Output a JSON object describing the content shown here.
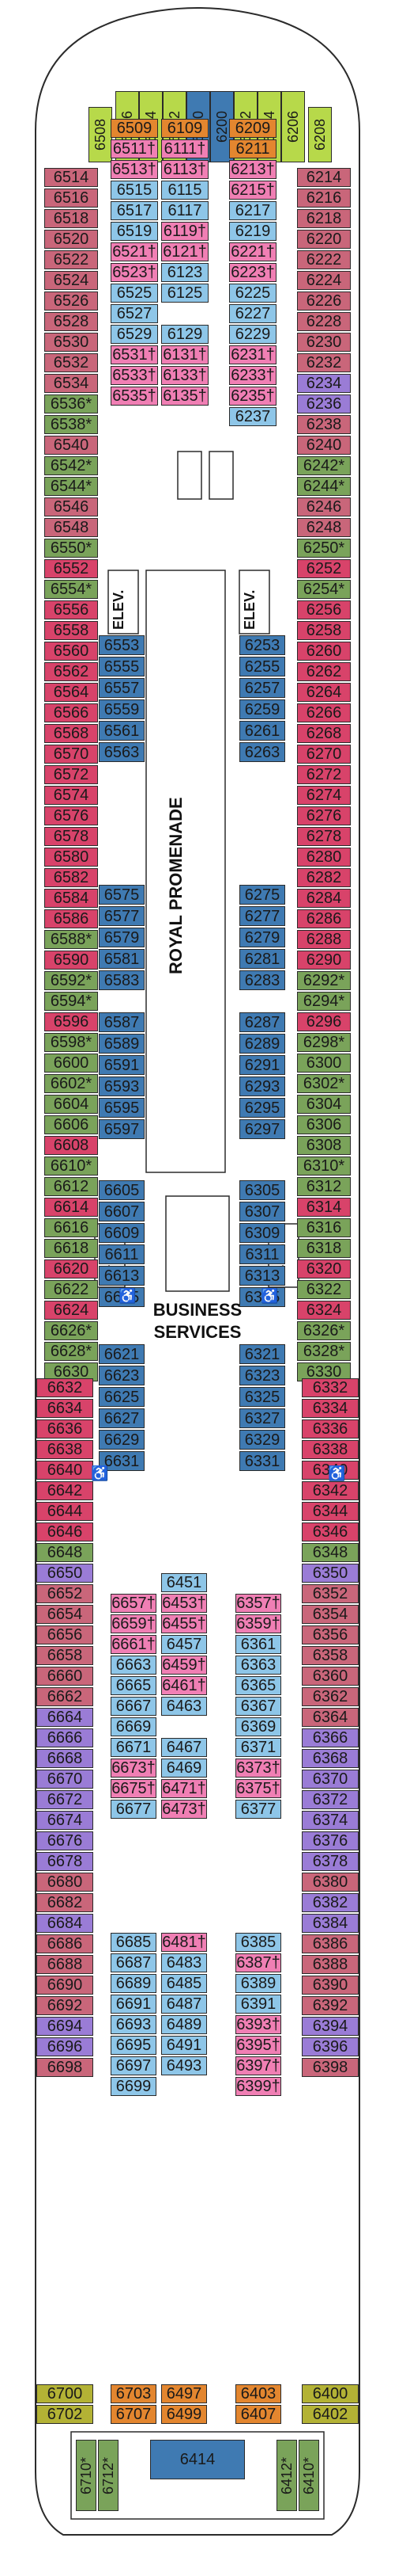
{
  "colors": {
    "red": "#d8436a",
    "rose": "#c9667a",
    "blue": "#8ec6e8",
    "steelblue": "#3f7ab2",
    "pink": "#f07fb4",
    "green": "#7aa35a",
    "olive": "#b3b235",
    "lime": "#b7d94a",
    "orange": "#e3862f",
    "purple": "#9a7cd6",
    "deck": "#ffffff",
    "line": "#2b2b2b"
  },
  "labels": {
    "royal_promenade": "ROYAL PROMENADE",
    "business_services": "BUSINESS SERVICES",
    "elevator": "ELEV."
  },
  "cabins": {
    "bow": [
      "6508",
      "6506",
      "6504",
      "6502",
      "6500",
      "6200",
      "6202",
      "6204",
      "6206",
      "6208"
    ],
    "left_outer": [
      [
        "6514",
        "rose"
      ],
      [
        "6516",
        "rose"
      ],
      [
        "6518",
        "rose"
      ],
      [
        "6520",
        "rose"
      ],
      [
        "6522",
        "rose"
      ],
      [
        "6524",
        "rose"
      ],
      [
        "6526",
        "rose"
      ],
      [
        "6528",
        "rose"
      ],
      [
        "6530",
        "rose"
      ],
      [
        "6532",
        "rose"
      ],
      [
        "6534",
        "rose"
      ],
      [
        "6536*",
        "green"
      ],
      [
        "6538*",
        "green"
      ],
      [
        "6540",
        "rose"
      ],
      [
        "6542*",
        "green"
      ],
      [
        "6544*",
        "green"
      ],
      [
        "6546",
        "rose"
      ],
      [
        "6548",
        "rose"
      ],
      [
        "6550*",
        "green"
      ],
      [
        "6552",
        "red"
      ],
      [
        "6554*",
        "green"
      ],
      [
        "6556",
        "red"
      ],
      [
        "6558",
        "red"
      ],
      [
        "6560",
        "red"
      ],
      [
        "6562",
        "red"
      ],
      [
        "6564",
        "red"
      ],
      [
        "6566",
        "red"
      ],
      [
        "6568",
        "red"
      ],
      [
        "6570",
        "red"
      ],
      [
        "6572",
        "red"
      ],
      [
        "6574",
        "red"
      ],
      [
        "6576",
        "red"
      ],
      [
        "6578",
        "red"
      ],
      [
        "6580",
        "red"
      ],
      [
        "6582",
        "red"
      ],
      [
        "6584",
        "red"
      ],
      [
        "6586",
        "red"
      ],
      [
        "6588*",
        "green"
      ],
      [
        "6590",
        "red"
      ],
      [
        "6592*",
        "green"
      ],
      [
        "6594*",
        "green"
      ],
      [
        "6596",
        "red"
      ],
      [
        "6598*",
        "green"
      ],
      [
        "6600",
        "green"
      ],
      [
        "6602*",
        "green"
      ],
      [
        "6604",
        "green"
      ],
      [
        "6606",
        "green"
      ],
      [
        "6608",
        "red"
      ],
      [
        "6610*",
        "green"
      ],
      [
        "6612",
        "green"
      ],
      [
        "6614",
        "red"
      ],
      [
        "6616",
        "green"
      ],
      [
        "6618",
        "green"
      ],
      [
        "6620",
        "red"
      ],
      [
        "6622",
        "green"
      ],
      [
        "6624",
        "red"
      ],
      [
        "6626*",
        "green"
      ],
      [
        "6628*",
        "green"
      ],
      [
        "6630",
        "green"
      ]
    ],
    "right_outer": [
      [
        "6214",
        "rose"
      ],
      [
        "6216",
        "rose"
      ],
      [
        "6218",
        "rose"
      ],
      [
        "6220",
        "rose"
      ],
      [
        "6222",
        "rose"
      ],
      [
        "6224",
        "rose"
      ],
      [
        "6226",
        "rose"
      ],
      [
        "6228",
        "rose"
      ],
      [
        "6230",
        "rose"
      ],
      [
        "6232",
        "rose"
      ],
      [
        "6234",
        "purple"
      ],
      [
        "6236",
        "purple"
      ],
      [
        "6238",
        "rose"
      ],
      [
        "6240",
        "rose"
      ],
      [
        "6242*",
        "green"
      ],
      [
        "6244*",
        "green"
      ],
      [
        "6246",
        "rose"
      ],
      [
        "6248",
        "rose"
      ],
      [
        "6250*",
        "green"
      ],
      [
        "6252",
        "red"
      ],
      [
        "6254*",
        "green"
      ],
      [
        "6256",
        "red"
      ],
      [
        "6258",
        "red"
      ],
      [
        "6260",
        "red"
      ],
      [
        "6262",
        "red"
      ],
      [
        "6264",
        "red"
      ],
      [
        "6266",
        "red"
      ],
      [
        "6268",
        "red"
      ],
      [
        "6270",
        "red"
      ],
      [
        "6272",
        "red"
      ],
      [
        "6274",
        "red"
      ],
      [
        "6276",
        "red"
      ],
      [
        "6278",
        "red"
      ],
      [
        "6280",
        "red"
      ],
      [
        "6282",
        "red"
      ],
      [
        "6284",
        "red"
      ],
      [
        "6286",
        "red"
      ],
      [
        "6288",
        "red"
      ],
      [
        "6290",
        "red"
      ],
      [
        "6292*",
        "green"
      ],
      [
        "6294*",
        "green"
      ],
      [
        "6296",
        "red"
      ],
      [
        "6298*",
        "green"
      ],
      [
        "6300",
        "green"
      ],
      [
        "6302*",
        "green"
      ],
      [
        "6304",
        "green"
      ],
      [
        "6306",
        "green"
      ],
      [
        "6308",
        "green"
      ],
      [
        "6310*",
        "green"
      ],
      [
        "6312",
        "green"
      ],
      [
        "6314",
        "red"
      ],
      [
        "6316",
        "green"
      ],
      [
        "6318",
        "green"
      ],
      [
        "6320",
        "red"
      ],
      [
        "6322",
        "green"
      ],
      [
        "6324",
        "red"
      ],
      [
        "6326*",
        "green"
      ],
      [
        "6328*",
        "green"
      ],
      [
        "6330",
        "green"
      ]
    ],
    "fwd_inner_left": [
      [
        "6509",
        "orange"
      ],
      [
        "6511†",
        "pink"
      ],
      [
        "6513†",
        "pink"
      ],
      [
        "6515",
        "blue"
      ],
      [
        "6517",
        "blue"
      ],
      [
        "6519",
        "blue"
      ],
      [
        "6521†",
        "pink"
      ],
      [
        "6523†",
        "pink"
      ],
      [
        "6525",
        "blue"
      ],
      [
        "6527",
        "blue"
      ],
      [
        "6529",
        "blue"
      ],
      [
        "6531†",
        "pink"
      ],
      [
        "6533†",
        "pink"
      ],
      [
        "6535†",
        "pink"
      ]
    ],
    "fwd_inner_c1": [
      [
        "6109",
        "orange"
      ],
      [
        "6111†",
        "pink"
      ],
      [
        "6113†",
        "pink"
      ],
      [
        "6115",
        "blue"
      ],
      [
        "6117",
        "blue"
      ],
      [
        "6119†",
        "pink"
      ],
      [
        "6121†",
        "pink"
      ],
      [
        "6123",
        "blue"
      ],
      [
        "6125",
        "blue"
      ],
      [
        "",
        "none"
      ],
      [
        "6129",
        "blue"
      ],
      [
        "6131†",
        "pink"
      ],
      [
        "6133†",
        "pink"
      ],
      [
        "6135†",
        "pink"
      ]
    ],
    "fwd_inner_right": [
      [
        "6209",
        "orange"
      ],
      [
        "6211",
        "orange"
      ],
      [
        "6213†",
        "pink"
      ],
      [
        "6215†",
        "pink"
      ],
      [
        "6217",
        "blue"
      ],
      [
        "6219",
        "blue"
      ],
      [
        "6221†",
        "pink"
      ],
      [
        "6223†",
        "pink"
      ],
      [
        "6225",
        "blue"
      ],
      [
        "6227",
        "blue"
      ],
      [
        "6229",
        "blue"
      ],
      [
        "6231†",
        "pink"
      ],
      [
        "6233†",
        "pink"
      ],
      [
        "6235†",
        "pink"
      ],
      [
        "6237",
        "blue"
      ]
    ],
    "mid_left_a": [
      "6553",
      "6555",
      "6557",
      "6559",
      "6561",
      "6563"
    ],
    "mid_right_a": [
      "6253",
      "6255",
      "6257",
      "6259",
      "6261",
      "6263"
    ],
    "mid_left_b": [
      "6575",
      "6577",
      "6579",
      "6581",
      "6583"
    ],
    "mid_right_b": [
      "6275",
      "6277",
      "6279",
      "6281",
      "6283"
    ],
    "mid_left_c": [
      "6587",
      "6589",
      "6591",
      "6593",
      "6595",
      "6597"
    ],
    "mid_right_c": [
      "6287",
      "6289",
      "6291",
      "6293",
      "6295",
      "6297"
    ],
    "mid_left_d": [
      "6605",
      "6607",
      "6609",
      "6611",
      "6613",
      "6615"
    ],
    "mid_right_d": [
      "6305",
      "6307",
      "6309",
      "6311",
      "6313",
      "6315"
    ],
    "mid_left_e": [
      "6621",
      "6623",
      "6625",
      "6627",
      "6629",
      "6631"
    ],
    "mid_right_e": [
      "6321",
      "6323",
      "6325",
      "6327",
      "6329",
      "6331"
    ],
    "aft_left_outer": [
      [
        "6632",
        "red"
      ],
      [
        "6634",
        "red"
      ],
      [
        "6636",
        "red"
      ],
      [
        "6638",
        "red"
      ],
      [
        "6640",
        "red"
      ],
      [
        "6642",
        "red"
      ],
      [
        "6644",
        "red"
      ],
      [
        "6646",
        "red"
      ],
      [
        "6648",
        "green"
      ],
      [
        "6650",
        "purple"
      ],
      [
        "6652",
        "rose"
      ],
      [
        "6654",
        "rose"
      ],
      [
        "6656",
        "rose"
      ],
      [
        "6658",
        "rose"
      ],
      [
        "6660",
        "rose"
      ],
      [
        "6662",
        "rose"
      ],
      [
        "6664",
        "purple"
      ],
      [
        "6666",
        "purple"
      ],
      [
        "6668",
        "purple"
      ],
      [
        "6670",
        "purple"
      ],
      [
        "6672",
        "purple"
      ],
      [
        "6674",
        "purple"
      ],
      [
        "6676",
        "purple"
      ],
      [
        "6678",
        "purple"
      ],
      [
        "6680",
        "rose"
      ],
      [
        "6682",
        "rose"
      ],
      [
        "6684",
        "purple"
      ],
      [
        "6686",
        "rose"
      ],
      [
        "6688",
        "rose"
      ],
      [
        "6690",
        "rose"
      ],
      [
        "6692",
        "rose"
      ],
      [
        "6694",
        "purple"
      ],
      [
        "6696",
        "purple"
      ],
      [
        "6698",
        "rose"
      ]
    ],
    "aft_right_outer": [
      [
        "6332",
        "red"
      ],
      [
        "6334",
        "red"
      ],
      [
        "6336",
        "red"
      ],
      [
        "6338",
        "red"
      ],
      [
        "6340",
        "red"
      ],
      [
        "6342",
        "red"
      ],
      [
        "6344",
        "red"
      ],
      [
        "6346",
        "red"
      ],
      [
        "6348",
        "green"
      ],
      [
        "6350",
        "purple"
      ],
      [
        "6352",
        "rose"
      ],
      [
        "6354",
        "rose"
      ],
      [
        "6356",
        "rose"
      ],
      [
        "6358",
        "rose"
      ],
      [
        "6360",
        "rose"
      ],
      [
        "6362",
        "rose"
      ],
      [
        "6364",
        "rose"
      ],
      [
        "6366",
        "purple"
      ],
      [
        "6368",
        "purple"
      ],
      [
        "6370",
        "purple"
      ],
      [
        "6372",
        "purple"
      ],
      [
        "6374",
        "purple"
      ],
      [
        "6376",
        "purple"
      ],
      [
        "6378",
        "purple"
      ],
      [
        "6380",
        "rose"
      ],
      [
        "6382",
        "purple"
      ],
      [
        "6384",
        "purple"
      ],
      [
        "6386",
        "rose"
      ],
      [
        "6388",
        "rose"
      ],
      [
        "6390",
        "rose"
      ],
      [
        "6392",
        "rose"
      ],
      [
        "6394",
        "purple"
      ],
      [
        "6396",
        "purple"
      ],
      [
        "6398",
        "rose"
      ]
    ],
    "aft_inner_l1": [
      [
        "6657†",
        "pink"
      ],
      [
        "6659†",
        "pink"
      ],
      [
        "6661†",
        "pink"
      ],
      [
        "6663",
        "blue"
      ],
      [
        "6665",
        "blue"
      ],
      [
        "6667",
        "blue"
      ],
      [
        "6669",
        "blue"
      ],
      [
        "6671",
        "blue"
      ],
      [
        "6673†",
        "pink"
      ],
      [
        "6675†",
        "pink"
      ],
      [
        "6677",
        "blue"
      ]
    ],
    "aft_inner_l2": [
      [
        "6451",
        "blue"
      ],
      [
        "6453†",
        "pink"
      ],
      [
        "6455†",
        "pink"
      ],
      [
        "6457",
        "blue"
      ],
      [
        "6459†",
        "pink"
      ],
      [
        "6461†",
        "pink"
      ],
      [
        "6463",
        "blue"
      ],
      [
        "",
        "none"
      ],
      [
        "6467",
        "blue"
      ],
      [
        "6469",
        "blue"
      ],
      [
        "6471†",
        "pink"
      ],
      [
        "6473†",
        "pink"
      ]
    ],
    "aft_inner_r1": [
      [
        "6357†",
        "pink"
      ],
      [
        "6359†",
        "pink"
      ],
      [
        "6361",
        "blue"
      ],
      [
        "6363",
        "blue"
      ],
      [
        "6365",
        "blue"
      ],
      [
        "6367",
        "blue"
      ],
      [
        "6369",
        "blue"
      ],
      [
        "6371",
        "blue"
      ],
      [
        "6373†",
        "pink"
      ],
      [
        "6375†",
        "pink"
      ],
      [
        "6377",
        "blue"
      ]
    ],
    "aft_low_l1": [
      [
        "6685",
        "blue"
      ],
      [
        "6687",
        "blue"
      ],
      [
        "6689",
        "blue"
      ],
      [
        "6691",
        "blue"
      ],
      [
        "6693",
        "blue"
      ],
      [
        "6695",
        "blue"
      ],
      [
        "6697",
        "blue"
      ],
      [
        "6699",
        "blue"
      ]
    ],
    "aft_low_l2": [
      [
        "6481†",
        "pink"
      ],
      [
        "6483",
        "blue"
      ],
      [
        "6485",
        "blue"
      ],
      [
        "6487",
        "blue"
      ],
      [
        "6489",
        "blue"
      ],
      [
        "6491",
        "blue"
      ],
      [
        "6493",
        "blue"
      ]
    ],
    "aft_low_r1": [
      [
        "6385",
        "blue"
      ],
      [
        "6387†",
        "pink"
      ],
      [
        "6389",
        "blue"
      ],
      [
        "6391",
        "blue"
      ],
      [
        "6393†",
        "pink"
      ],
      [
        "6395†",
        "pink"
      ],
      [
        "6397†",
        "pink"
      ],
      [
        "6399†",
        "pink"
      ]
    ],
    "stern": [
      [
        "6700",
        "olive"
      ],
      [
        "6702",
        "olive"
      ],
      [
        "6703",
        "orange"
      ],
      [
        "6707",
        "orange"
      ],
      [
        "6497",
        "orange"
      ],
      [
        "6499",
        "orange"
      ],
      [
        "6403",
        "orange"
      ],
      [
        "6407",
        "orange"
      ],
      [
        "6400",
        "olive"
      ],
      [
        "6402",
        "olive"
      ]
    ],
    "stern_special": [
      "6414",
      "6710*",
      "6712*",
      "6412*",
      "6410*"
    ]
  }
}
